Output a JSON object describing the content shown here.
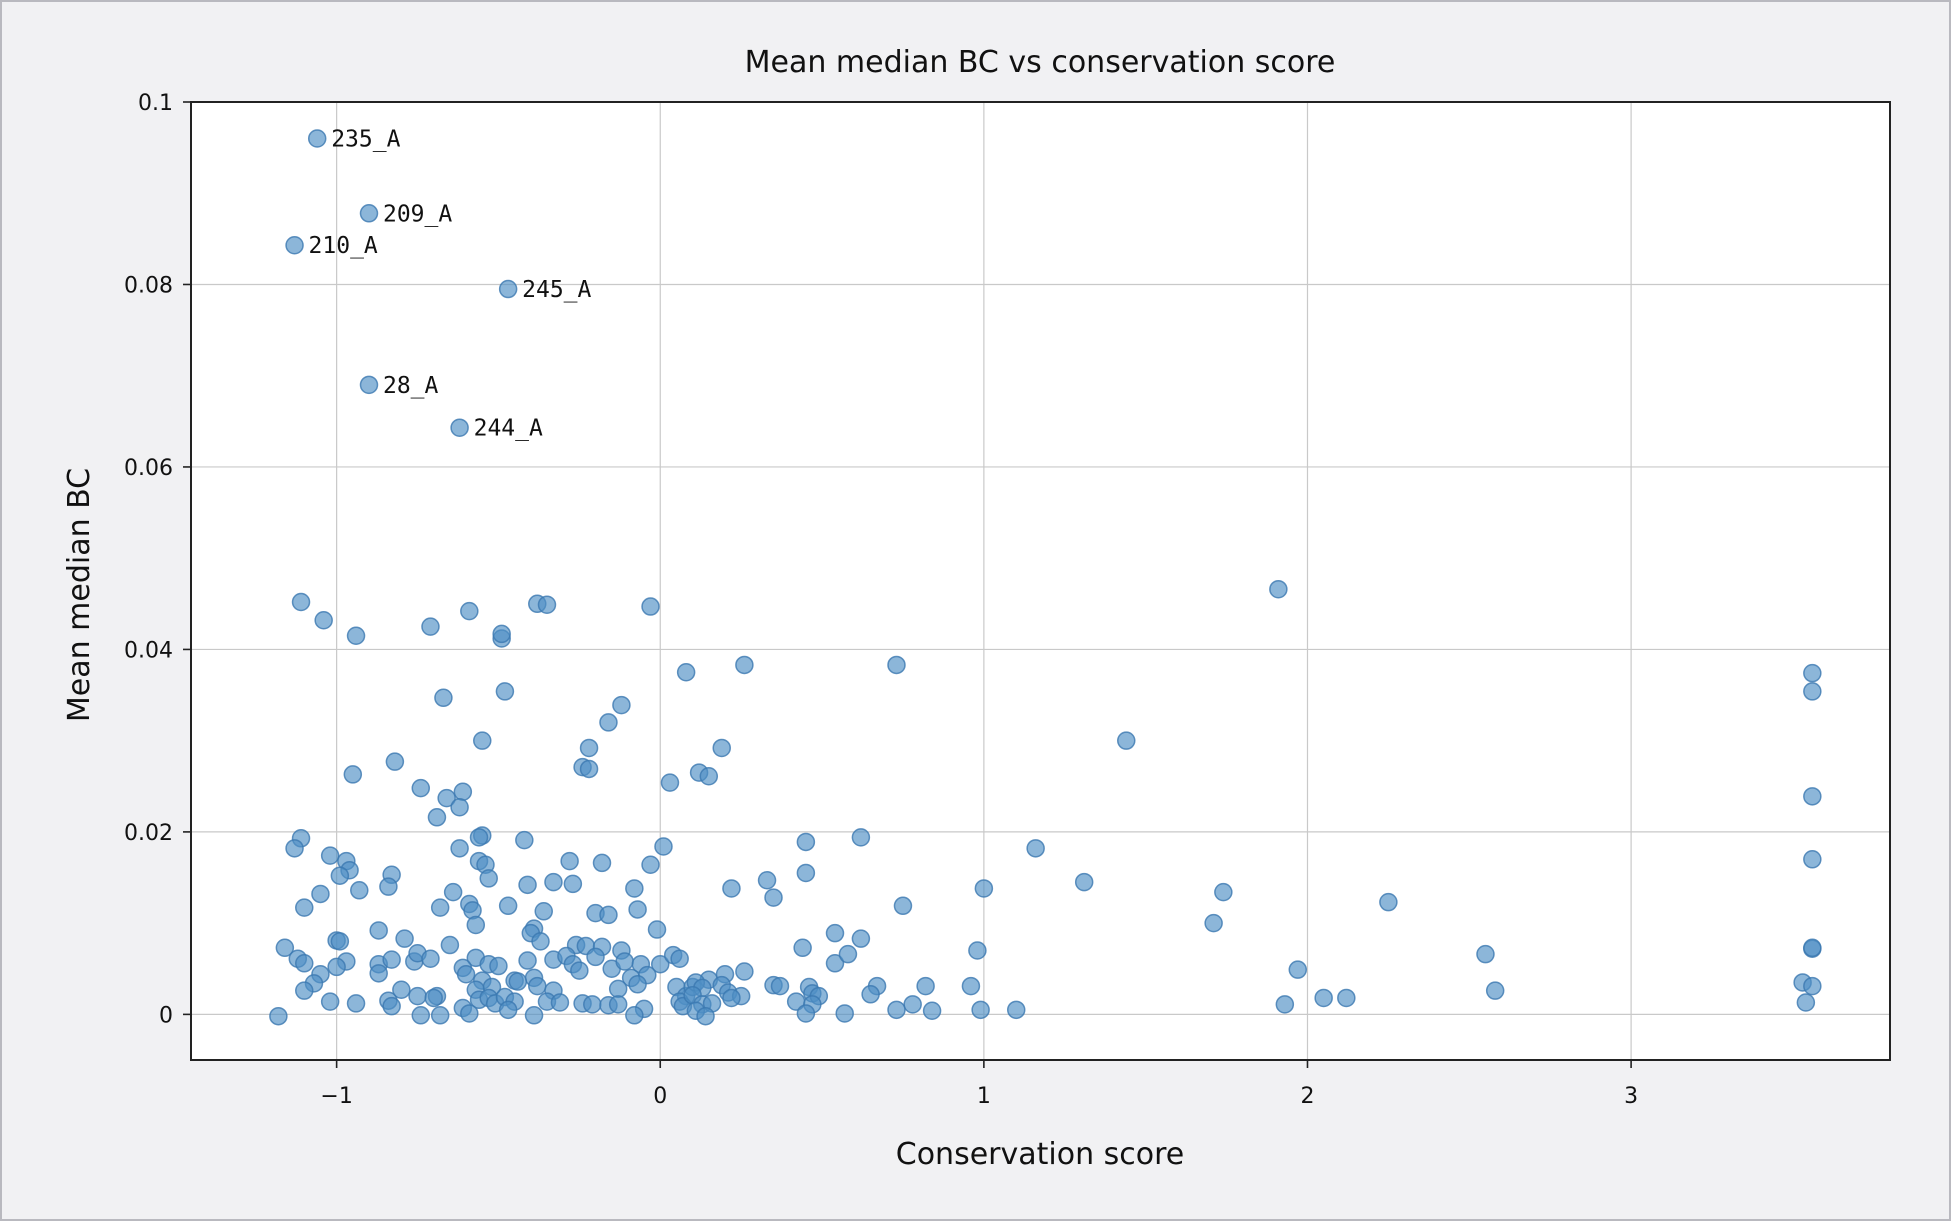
{
  "chart_data": {
    "type": "scatter",
    "title": "Mean median BC vs conservation score",
    "xlabel": "Conservation score",
    "ylabel": "Mean median BC",
    "xlim": [
      -1.45,
      3.8
    ],
    "ylim": [
      -0.005,
      0.1
    ],
    "xticks": [
      -1,
      0,
      1,
      2,
      3
    ],
    "xtick_labels": [
      "−1",
      "0",
      "1",
      "2",
      "3"
    ],
    "yticks": [
      0,
      0.02,
      0.04,
      0.06,
      0.08,
      0.1
    ],
    "ytick_labels": [
      "0",
      "0.02",
      "0.04",
      "0.06",
      "0.08",
      "0.1"
    ],
    "grid": true,
    "legend": "none",
    "point_color": "#4f8fc4",
    "labeled_points": [
      {
        "label": "235_A",
        "x": -1.06,
        "y": 0.096
      },
      {
        "label": "209_A",
        "x": -0.9,
        "y": 0.0878
      },
      {
        "label": "210_A",
        "x": -1.13,
        "y": 0.0843
      },
      {
        "label": "245_A",
        "x": -0.47,
        "y": 0.0795
      },
      {
        "label": "28_A",
        "x": -0.9,
        "y": 0.069
      },
      {
        "label": "244_A",
        "x": -0.62,
        "y": 0.0643
      }
    ],
    "points": [
      [
        -1.11,
        0.0452
      ],
      [
        -1.04,
        0.0432
      ],
      [
        -0.94,
        0.0415
      ],
      [
        -0.71,
        0.0425
      ],
      [
        -0.59,
        0.0442
      ],
      [
        -0.49,
        0.0412
      ],
      [
        -0.49,
        0.0417
      ],
      [
        -0.38,
        0.045
      ],
      [
        -0.35,
        0.0449
      ],
      [
        -0.03,
        0.0447
      ],
      [
        1.91,
        0.0466
      ],
      [
        0.08,
        0.0375
      ],
      [
        0.26,
        0.0383
      ],
      [
        0.73,
        0.0383
      ],
      [
        3.56,
        0.0374
      ],
      [
        3.56,
        0.0354
      ],
      [
        -0.48,
        0.0354
      ],
      [
        -0.67,
        0.0347
      ],
      [
        -0.12,
        0.0339
      ],
      [
        -0.16,
        0.032
      ],
      [
        -0.55,
        0.03
      ],
      [
        1.44,
        0.03
      ],
      [
        -0.22,
        0.0292
      ],
      [
        0.19,
        0.0292
      ],
      [
        -0.82,
        0.0277
      ],
      [
        -0.24,
        0.0271
      ],
      [
        -0.22,
        0.0269
      ],
      [
        -0.95,
        0.0263
      ],
      [
        0.12,
        0.0265
      ],
      [
        0.15,
        0.0261
      ],
      [
        0.03,
        0.0254
      ],
      [
        -0.74,
        0.0248
      ],
      [
        -0.61,
        0.0244
      ],
      [
        -0.66,
        0.0237
      ],
      [
        -0.62,
        0.0227
      ],
      [
        3.56,
        0.0239
      ],
      [
        -0.69,
        0.0216
      ],
      [
        -0.55,
        0.0196
      ],
      [
        -0.56,
        0.0194
      ],
      [
        -0.42,
        0.0191
      ],
      [
        -1.11,
        0.0193
      ],
      [
        -1.13,
        0.0182
      ],
      [
        -0.62,
        0.0182
      ],
      [
        0.01,
        0.0184
      ],
      [
        0.45,
        0.0189
      ],
      [
        0.62,
        0.0194
      ],
      [
        1.16,
        0.0182
      ],
      [
        -1.02,
        0.0174
      ],
      [
        -0.97,
        0.0168
      ],
      [
        -0.56,
        0.0168
      ],
      [
        -0.54,
        0.0164
      ],
      [
        -0.28,
        0.0168
      ],
      [
        -0.18,
        0.0166
      ],
      [
        -0.03,
        0.0164
      ],
      [
        3.56,
        0.017
      ],
      [
        -0.96,
        0.0158
      ],
      [
        -0.99,
        0.0152
      ],
      [
        -0.83,
        0.0153
      ],
      [
        -0.53,
        0.0149
      ],
      [
        -0.33,
        0.0145
      ],
      [
        -0.27,
        0.0143
      ],
      [
        -0.84,
        0.014
      ],
      [
        -0.41,
        0.0142
      ],
      [
        0.33,
        0.0147
      ],
      [
        0.45,
        0.0155
      ],
      [
        1.31,
        0.0145
      ],
      [
        -0.93,
        0.0136
      ],
      [
        -0.64,
        0.0134
      ],
      [
        -0.08,
        0.0138
      ],
      [
        0.22,
        0.0138
      ],
      [
        0.35,
        0.0128
      ],
      [
        1.0,
        0.0138
      ],
      [
        1.74,
        0.0134
      ],
      [
        -1.05,
        0.0132
      ],
      [
        -1.1,
        0.0117
      ],
      [
        -0.68,
        0.0117
      ],
      [
        -0.59,
        0.0121
      ],
      [
        -0.58,
        0.0114
      ],
      [
        -0.47,
        0.0119
      ],
      [
        -0.2,
        0.0111
      ],
      [
        -0.16,
        0.0109
      ],
      [
        -0.07,
        0.0115
      ],
      [
        0.75,
        0.0119
      ],
      [
        2.25,
        0.0123
      ],
      [
        -0.36,
        0.0113
      ],
      [
        -0.57,
        0.0098
      ],
      [
        -0.87,
        0.0092
      ],
      [
        -0.39,
        0.0094
      ],
      [
        -0.4,
        0.0089
      ],
      [
        -0.01,
        0.0093
      ],
      [
        0.54,
        0.0089
      ],
      [
        1.71,
        0.01
      ],
      [
        -1.0,
        0.0081
      ],
      [
        -0.99,
        0.008
      ],
      [
        -0.79,
        0.0083
      ],
      [
        -0.37,
        0.008
      ],
      [
        -0.26,
        0.0076
      ],
      [
        -0.23,
        0.0075
      ],
      [
        -0.18,
        0.0074
      ],
      [
        -0.12,
        0.007
      ],
      [
        0.44,
        0.0073
      ],
      [
        0.62,
        0.0083
      ],
      [
        0.98,
        0.007
      ],
      [
        -1.16,
        0.0073
      ],
      [
        -0.65,
        0.0076
      ],
      [
        -1.12,
        0.0061
      ],
      [
        -1.1,
        0.0056
      ],
      [
        -0.97,
        0.0058
      ],
      [
        -1.0,
        0.0052
      ],
      [
        -0.87,
        0.0055
      ],
      [
        -0.83,
        0.006
      ],
      [
        -0.76,
        0.0058
      ],
      [
        -0.75,
        0.0067
      ],
      [
        -0.71,
        0.0061
      ],
      [
        -0.57,
        0.0062
      ],
      [
        -0.61,
        0.0051
      ],
      [
        -0.53,
        0.0055
      ],
      [
        -0.5,
        0.0053
      ],
      [
        -0.41,
        0.0059
      ],
      [
        -0.33,
        0.006
      ],
      [
        -0.29,
        0.0064
      ],
      [
        -0.27,
        0.0055
      ],
      [
        -0.25,
        0.0048
      ],
      [
        -0.2,
        0.0063
      ],
      [
        -0.15,
        0.005
      ],
      [
        -0.11,
        0.0058
      ],
      [
        -0.06,
        0.0055
      ],
      [
        0.0,
        0.0055
      ],
      [
        0.04,
        0.0065
      ],
      [
        0.06,
        0.0061
      ],
      [
        0.54,
        0.0056
      ],
      [
        0.58,
        0.0066
      ],
      [
        2.55,
        0.0066
      ],
      [
        1.97,
        0.0049
      ],
      [
        -1.05,
        0.0044
      ],
      [
        -0.87,
        0.0045
      ],
      [
        -0.6,
        0.0044
      ],
      [
        -0.55,
        0.0037
      ],
      [
        -0.45,
        0.0037
      ],
      [
        -0.39,
        0.004
      ],
      [
        -0.38,
        0.0031
      ],
      [
        -0.09,
        0.004
      ],
      [
        -0.04,
        0.0043
      ],
      [
        0.15,
        0.0038
      ],
      [
        0.2,
        0.0044
      ],
      [
        0.26,
        0.0047
      ],
      [
        0.35,
        0.0032
      ],
      [
        0.37,
        0.0031
      ],
      [
        0.46,
        0.003
      ],
      [
        0.67,
        0.0031
      ],
      [
        0.82,
        0.0031
      ],
      [
        0.96,
        0.0031
      ],
      [
        3.53,
        0.0035
      ],
      [
        3.56,
        0.0031
      ],
      [
        3.56,
        0.0072
      ],
      [
        3.56,
        0.0073
      ],
      [
        -1.07,
        0.0034
      ],
      [
        -1.1,
        0.0026
      ],
      [
        -0.8,
        0.0027
      ],
      [
        -0.69,
        0.002
      ],
      [
        -0.57,
        0.0027
      ],
      [
        -0.52,
        0.003
      ],
      [
        -0.44,
        0.0036
      ],
      [
        -0.33,
        0.0026
      ],
      [
        -0.13,
        0.0028
      ],
      [
        -0.07,
        0.0033
      ],
      [
        0.05,
        0.003
      ],
      [
        0.08,
        0.002
      ],
      [
        0.1,
        0.003
      ],
      [
        0.11,
        0.0035
      ],
      [
        0.13,
        0.0029
      ],
      [
        0.19,
        0.0032
      ],
      [
        0.21,
        0.0024
      ],
      [
        0.25,
        0.002
      ],
      [
        0.47,
        0.0023
      ],
      [
        0.49,
        0.002
      ],
      [
        0.65,
        0.0022
      ],
      [
        2.58,
        0.0026
      ],
      [
        -1.02,
        0.0014
      ],
      [
        -0.94,
        0.0012
      ],
      [
        -0.84,
        0.0015
      ],
      [
        -0.83,
        0.0009
      ],
      [
        -0.75,
        0.002
      ],
      [
        -0.7,
        0.0018
      ],
      [
        -0.56,
        0.0016
      ],
      [
        -0.53,
        0.0018
      ],
      [
        -0.51,
        0.0012
      ],
      [
        -0.48,
        0.0019
      ],
      [
        -0.45,
        0.0014
      ],
      [
        -0.35,
        0.0014
      ],
      [
        -0.31,
        0.0013
      ],
      [
        -0.24,
        0.0012
      ],
      [
        -0.21,
        0.0011
      ],
      [
        -0.16,
        0.001
      ],
      [
        -0.13,
        0.0011
      ],
      [
        0.06,
        0.0014
      ],
      [
        0.07,
        0.0009
      ],
      [
        0.1,
        0.0021
      ],
      [
        0.13,
        0.0011
      ],
      [
        0.16,
        0.0012
      ],
      [
        0.22,
        0.0018
      ],
      [
        0.42,
        0.0014
      ],
      [
        0.47,
        0.0011
      ],
      [
        0.78,
        0.0011
      ],
      [
        1.93,
        0.0011
      ],
      [
        2.05,
        0.0018
      ],
      [
        2.12,
        0.0018
      ],
      [
        3.54,
        0.0013
      ],
      [
        -0.61,
        0.0007
      ],
      [
        -0.47,
        0.0005
      ],
      [
        -0.05,
        0.0006
      ],
      [
        0.11,
        0.0004
      ],
      [
        0.45,
        0.0001
      ],
      [
        0.57,
        0.0001
      ],
      [
        0.73,
        0.0005
      ],
      [
        0.84,
        0.0004
      ],
      [
        0.99,
        0.0005
      ],
      [
        1.1,
        0.0005
      ],
      [
        -1.18,
        -0.0002
      ],
      [
        -0.74,
        -0.0001
      ],
      [
        -0.68,
        -0.0001
      ],
      [
        -0.59,
        0.0001
      ],
      [
        -0.39,
        -0.0001
      ],
      [
        -0.08,
        -0.0001
      ],
      [
        0.14,
        -0.0002
      ]
    ]
  }
}
